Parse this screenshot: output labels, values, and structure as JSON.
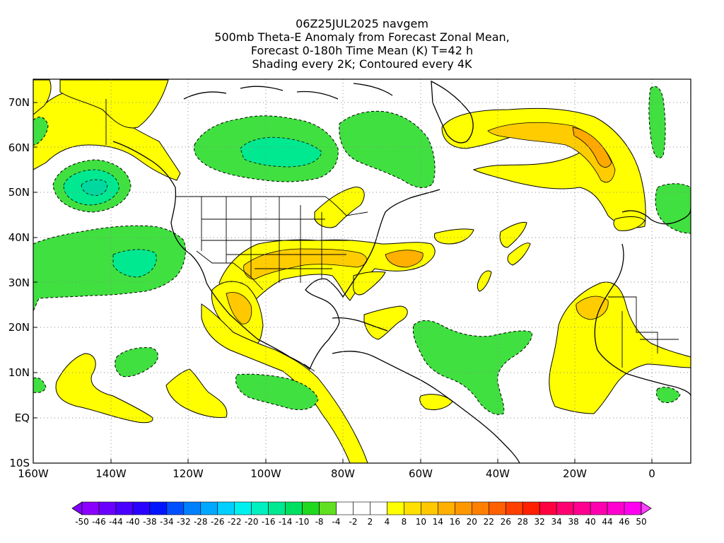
{
  "title": {
    "line1": "06Z25JUL2025 navgem",
    "line2": "500mb Theta-E Anomaly from Forecast Zonal Mean,",
    "line3": "Forecast 0-180h Time Mean (K) T=42 h",
    "line4": "Shading every 2K; Contoured every 4K"
  },
  "map": {
    "lat_labels": [
      "70N",
      "60N",
      "50N",
      "40N",
      "30N",
      "20N",
      "10N",
      "EQ",
      "10S"
    ],
    "lon_labels": [
      "160W",
      "140W",
      "120W",
      "100W",
      "80W",
      "60W",
      "40W",
      "20W",
      "0"
    ],
    "region": "North Atlantic / North America / Eastern Pacific",
    "lat_range": [
      -10,
      75
    ],
    "lon_range": [
      -160,
      10
    ]
  },
  "colorbar": {
    "labels": [
      "-50",
      "-46",
      "-44",
      "-40",
      "-38",
      "-34",
      "-32",
      "-28",
      "-26",
      "-22",
      "-20",
      "-16",
      "-14",
      "-10",
      "-8",
      "-4",
      "-2",
      "2",
      "4",
      "8",
      "10",
      "14",
      "16",
      "20",
      "22",
      "26",
      "28",
      "32",
      "34",
      "38",
      "40",
      "44",
      "46",
      "50"
    ],
    "colors": [
      "#8a00ff",
      "#6a00ff",
      "#4a00ff",
      "#2a00ff",
      "#0014ff",
      "#0050ff",
      "#0080ff",
      "#00a8ff",
      "#00d0ff",
      "#00f0f0",
      "#00f0c0",
      "#00e890",
      "#00e060",
      "#20d820",
      "#60e020",
      "#ffffff",
      "#ffffff",
      "#ffffff",
      "#ffff00",
      "#ffe000",
      "#ffc800",
      "#ffb000",
      "#ff9800",
      "#ff8000",
      "#ff6000",
      "#ff4000",
      "#ff2000",
      "#ff0040",
      "#ff0070",
      "#ff0090",
      "#ff00b0",
      "#ff00d0",
      "#ff00f0"
    ],
    "left_arrow_color": "#8000ff",
    "right_arrow_color": "#ff40ff"
  },
  "chart_data": {
    "type": "heatmap",
    "title": "500mb Theta-E Anomaly from Forecast Zonal Mean, Forecast 0-180h Time Mean (K) T=42 h",
    "units": "K",
    "shading_interval_K": 2,
    "contour_interval_K": 4,
    "x_range": [
      -160,
      10
    ],
    "y_range": [
      -10,
      75
    ],
    "positive_anomaly_areas": [
      "Gulf of Alaska coast",
      "Central/Southern US",
      "Mexico",
      "Greenland to North Atlantic",
      "West Africa",
      "Caribbean",
      "Eastern Tropical Pacific"
    ],
    "negative_anomaly_areas": [
      "Northeast Pacific near 52N 145W",
      "Central Pacific 30N",
      "Hudson Bay region",
      "Western Europe 45N",
      "Tropical Atlantic"
    ]
  }
}
